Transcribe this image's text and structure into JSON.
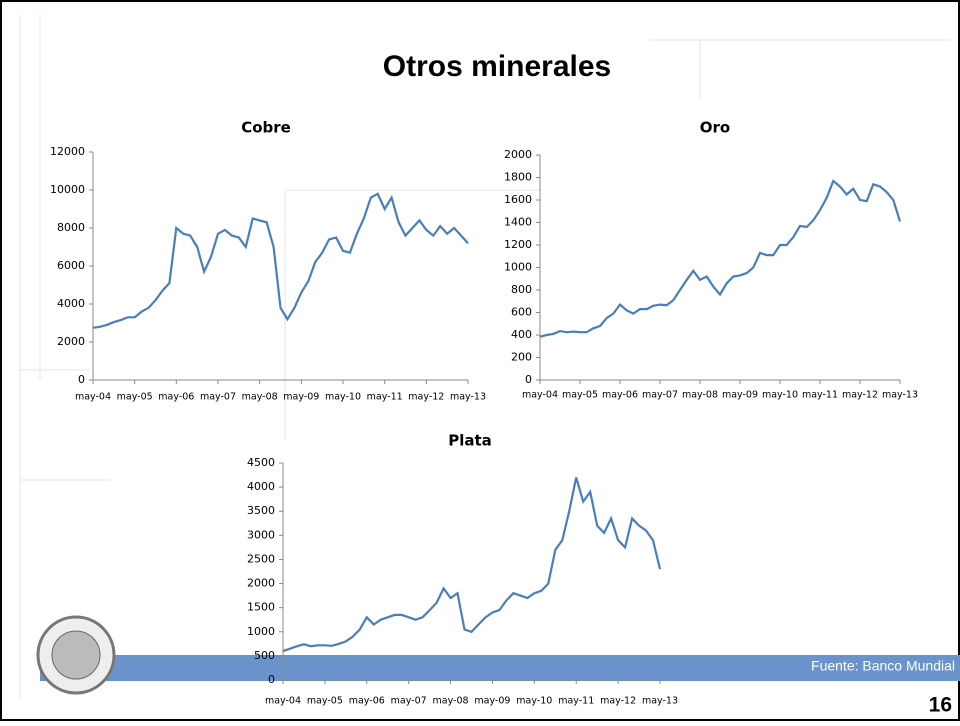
{
  "title": "Otros minerales",
  "source": "Fuente: Banco Mundial",
  "page_number": "16",
  "chart_data": [
    {
      "type": "line",
      "title": "Cobre",
      "color": "#4a7ebb",
      "categories": [
        "may-04",
        null,
        null,
        null,
        null,
        null,
        "may-05",
        null,
        null,
        null,
        null,
        null,
        "may-06",
        null,
        null,
        null,
        null,
        null,
        "may-07",
        null,
        null,
        null,
        null,
        null,
        "may-08",
        null,
        null,
        null,
        null,
        null,
        "may-09",
        null,
        null,
        null,
        null,
        null,
        "may-10",
        null,
        null,
        null,
        null,
        null,
        "may-11",
        null,
        null,
        null,
        null,
        null,
        "may-12",
        null,
        null,
        null,
        null,
        null,
        "may-13"
      ],
      "values": [
        2750,
        2800,
        2900,
        3050,
        3150,
        3300,
        3300,
        3600,
        3800,
        4200,
        4700,
        5100,
        8000,
        7700,
        7600,
        7000,
        5700,
        6500,
        7700,
        7900,
        7600,
        7500,
        7000,
        8500,
        8400,
        8300,
        7000,
        3800,
        3200,
        3800,
        4600,
        5200,
        6200,
        6700,
        7400,
        7500,
        6800,
        6700,
        7700,
        8500,
        9600,
        9800,
        9000,
        9600,
        8300,
        7600,
        8000,
        8400,
        7900,
        7600,
        8100,
        7700,
        8000,
        7600,
        7200
      ],
      "ylim": [
        0,
        12000
      ],
      "yticks": [
        0,
        2000,
        4000,
        6000,
        8000,
        10000,
        12000
      ]
    },
    {
      "type": "line",
      "title": "Oro",
      "color": "#4a7ebb",
      "categories": [
        "may-04",
        null,
        null,
        null,
        null,
        null,
        "may-05",
        null,
        null,
        null,
        null,
        null,
        "may-06",
        null,
        null,
        null,
        null,
        null,
        "may-07",
        null,
        null,
        null,
        null,
        null,
        "may-08",
        null,
        null,
        null,
        null,
        null,
        "may-09",
        null,
        null,
        null,
        null,
        null,
        "may-10",
        null,
        null,
        null,
        null,
        null,
        "may-11",
        null,
        null,
        null,
        null,
        null,
        "may-12",
        null,
        null,
        null,
        null,
        null,
        "may-13"
      ],
      "values": [
        385,
        400,
        410,
        435,
        425,
        430,
        425,
        425,
        460,
        480,
        550,
        590,
        670,
        620,
        590,
        630,
        630,
        660,
        670,
        665,
        710,
        800,
        890,
        970,
        890,
        920,
        830,
        760,
        860,
        920,
        930,
        950,
        1000,
        1130,
        1110,
        1110,
        1200,
        1200,
        1270,
        1370,
        1360,
        1420,
        1510,
        1620,
        1770,
        1720,
        1650,
        1700,
        1600,
        1590,
        1740,
        1720,
        1670,
        1600,
        1410
      ],
      "ylim": [
        0,
        2000
      ],
      "yticks": [
        0,
        200,
        400,
        600,
        800,
        1000,
        1200,
        1400,
        1600,
        1800,
        2000
      ]
    },
    {
      "type": "line",
      "title": "Plata",
      "color": "#4a7ebb",
      "categories": [
        "may-04",
        null,
        null,
        null,
        null,
        null,
        "may-05",
        null,
        null,
        null,
        null,
        null,
        "may-06",
        null,
        null,
        null,
        null,
        null,
        "may-07",
        null,
        null,
        null,
        null,
        null,
        "may-08",
        null,
        null,
        null,
        null,
        null,
        "may-09",
        null,
        null,
        null,
        null,
        null,
        "may-10",
        null,
        null,
        null,
        null,
        null,
        "may-11",
        null,
        null,
        null,
        null,
        null,
        "may-12",
        null,
        null,
        null,
        null,
        null,
        "may-13"
      ],
      "values": [
        600,
        650,
        700,
        740,
        700,
        720,
        720,
        710,
        750,
        800,
        900,
        1050,
        1300,
        1150,
        1250,
        1300,
        1350,
        1350,
        1300,
        1250,
        1300,
        1450,
        1600,
        1900,
        1700,
        1800,
        1050,
        1000,
        1150,
        1300,
        1400,
        1450,
        1650,
        1800,
        1750,
        1700,
        1800,
        1850,
        2000,
        2700,
        2900,
        3500,
        4200,
        3700,
        3900,
        3200,
        3050,
        3350,
        2900,
        2750,
        3350,
        3200,
        3100,
        2900,
        2300
      ],
      "ylim": [
        0,
        4500
      ],
      "yticks": [
        0,
        500,
        1000,
        1500,
        2000,
        2500,
        3000,
        3500,
        4000,
        4500
      ]
    }
  ]
}
